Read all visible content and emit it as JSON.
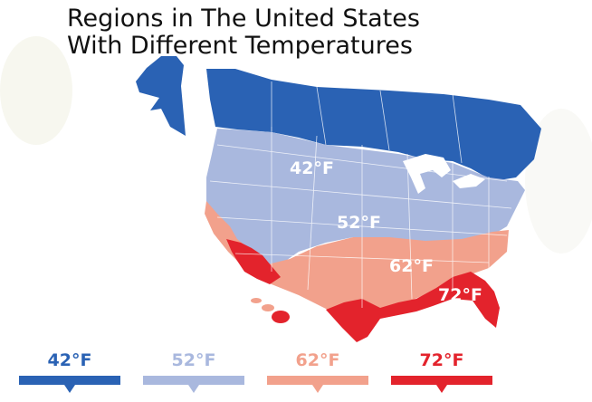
{
  "title": {
    "line1": "Regions in The United States",
    "line2": "With Different Temperatures"
  },
  "map_labels": {
    "zone_42": "42°F",
    "zone_52": "52°F",
    "zone_62": "62°F",
    "zone_72": "72°F"
  },
  "legend": [
    {
      "label": "42°F",
      "color": "#2a62b4"
    },
    {
      "label": "52°F",
      "color": "#a9b8de"
    },
    {
      "label": "62°F",
      "color": "#f2a18c"
    },
    {
      "label": "72°F",
      "color": "#e3232c"
    }
  ],
  "colors": {
    "zone_42": "#2a62b4",
    "zone_52": "#a9b8de",
    "zone_62": "#f2a18c",
    "zone_72": "#e3232c",
    "lakes": "#ffffff"
  }
}
